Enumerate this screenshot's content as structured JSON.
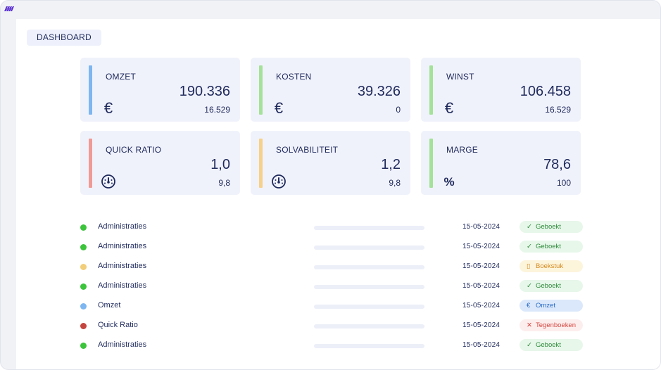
{
  "colors": {
    "omzet": "#7db6f0",
    "kosten": "#a4e29a",
    "winst": "#a4e29a",
    "quick_ratio": "#f09a94",
    "solvabiliteit": "#f6d18a",
    "marge": "#a4e29a",
    "dot_green": "#3cc43c",
    "dot_yellow": "#f2ce7a",
    "dot_blue": "#7db6f0",
    "dot_red": "#c4453f"
  },
  "header": {
    "title": "DASHBOARD"
  },
  "cards": [
    {
      "label": "OMZET",
      "value": "190.336",
      "sub": "16.529",
      "icon": "euro-icon"
    },
    {
      "label": "KOSTEN",
      "value": "39.326",
      "sub": "0",
      "icon": "euro-icon"
    },
    {
      "label": "WINST",
      "value": "106.458",
      "sub": "16.529",
      "icon": "euro-icon"
    },
    {
      "label": "QUICK RATIO",
      "value": "1,0",
      "sub": "9,8",
      "icon": "gauge-icon"
    },
    {
      "label": "SOLVABILITEIT",
      "value": "1,2",
      "sub": "9,8",
      "icon": "gauge-icon"
    },
    {
      "label": "MARGE",
      "value": "78,6",
      "sub": "100",
      "icon": "percent-icon"
    }
  ],
  "glyphs": {
    "euro": "€",
    "percent": "%",
    "check": "✓",
    "doc": "▯",
    "cross": "✕"
  },
  "rows": [
    {
      "name": "Administraties",
      "date": "15-05-2024",
      "status": "Geboekt",
      "status_icon": "check-icon"
    },
    {
      "name": "Administraties",
      "date": "15-05-2024",
      "status": "Geboekt",
      "status_icon": "check-icon"
    },
    {
      "name": "Administraties",
      "date": "15-05-2024",
      "status": "Boekstuk",
      "status_icon": "document-icon"
    },
    {
      "name": "Administraties",
      "date": "15-05-2024",
      "status": "Geboekt",
      "status_icon": "check-icon"
    },
    {
      "name": "Omzet",
      "date": "15-05-2024",
      "status": "Omzet",
      "status_icon": "euro-icon"
    },
    {
      "name": "Quick Ratio",
      "date": "15-05-2024",
      "status": "Tegenboeken",
      "status_icon": "cross-icon"
    },
    {
      "name": "Administraties",
      "date": "15-05-2024",
      "status": "Geboekt",
      "status_icon": "check-icon"
    }
  ]
}
